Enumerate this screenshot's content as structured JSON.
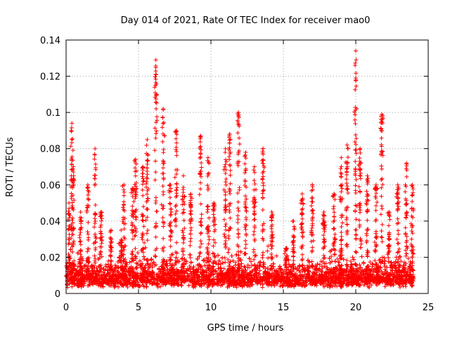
{
  "chart_data": {
    "type": "scatter",
    "title": "Day 014 of 2021, Rate Of TEC Index for receiver mao0",
    "xlabel": "GPS time / hours",
    "ylabel": "ROTI / TECUs",
    "xlim": [
      0,
      25
    ],
    "ylim": [
      0,
      0.14
    ],
    "xticks": [
      "0",
      "5",
      "10",
      "15",
      "20",
      "25"
    ],
    "yticks": [
      "0",
      "0.02",
      "0.04",
      "0.06",
      "0.08",
      "0.1",
      "0.12",
      "0.14"
    ],
    "grid": true,
    "marker": "+",
    "color": "#ff0000",
    "time_range_hours": [
      0,
      24
    ],
    "baseline_band": [
      0.003,
      0.03
    ],
    "peaks": [
      {
        "x": 0.2,
        "y": 0.05
      },
      {
        "x": 0.4,
        "y": 0.094
      },
      {
        "x": 0.5,
        "y": 0.07
      },
      {
        "x": 1.0,
        "y": 0.045
      },
      {
        "x": 1.5,
        "y": 0.06
      },
      {
        "x": 2.0,
        "y": 0.08
      },
      {
        "x": 2.4,
        "y": 0.045
      },
      {
        "x": 3.1,
        "y": 0.035
      },
      {
        "x": 3.8,
        "y": 0.035
      },
      {
        "x": 4.0,
        "y": 0.06
      },
      {
        "x": 4.6,
        "y": 0.058
      },
      {
        "x": 4.8,
        "y": 0.074
      },
      {
        "x": 5.3,
        "y": 0.07
      },
      {
        "x": 5.6,
        "y": 0.085
      },
      {
        "x": 6.2,
        "y": 0.129
      },
      {
        "x": 6.7,
        "y": 0.102
      },
      {
        "x": 7.2,
        "y": 0.06
      },
      {
        "x": 7.6,
        "y": 0.09
      },
      {
        "x": 8.1,
        "y": 0.065
      },
      {
        "x": 8.6,
        "y": 0.055
      },
      {
        "x": 9.3,
        "y": 0.087
      },
      {
        "x": 9.8,
        "y": 0.075
      },
      {
        "x": 10.2,
        "y": 0.05
      },
      {
        "x": 11.0,
        "y": 0.08
      },
      {
        "x": 11.3,
        "y": 0.088
      },
      {
        "x": 11.9,
        "y": 0.1
      },
      {
        "x": 12.4,
        "y": 0.078
      },
      {
        "x": 13.0,
        "y": 0.07
      },
      {
        "x": 13.6,
        "y": 0.08
      },
      {
        "x": 14.2,
        "y": 0.045
      },
      {
        "x": 15.2,
        "y": 0.025
      },
      {
        "x": 15.7,
        "y": 0.04
      },
      {
        "x": 16.3,
        "y": 0.055
      },
      {
        "x": 17.0,
        "y": 0.06
      },
      {
        "x": 17.8,
        "y": 0.045
      },
      {
        "x": 18.5,
        "y": 0.055
      },
      {
        "x": 19.0,
        "y": 0.075
      },
      {
        "x": 19.4,
        "y": 0.082
      },
      {
        "x": 20.0,
        "y": 0.134
      },
      {
        "x": 20.3,
        "y": 0.08
      },
      {
        "x": 20.8,
        "y": 0.065
      },
      {
        "x": 21.4,
        "y": 0.06
      },
      {
        "x": 21.8,
        "y": 0.099
      },
      {
        "x": 22.3,
        "y": 0.045
      },
      {
        "x": 22.9,
        "y": 0.06
      },
      {
        "x": 23.5,
        "y": 0.072
      },
      {
        "x": 23.9,
        "y": 0.06
      }
    ]
  }
}
